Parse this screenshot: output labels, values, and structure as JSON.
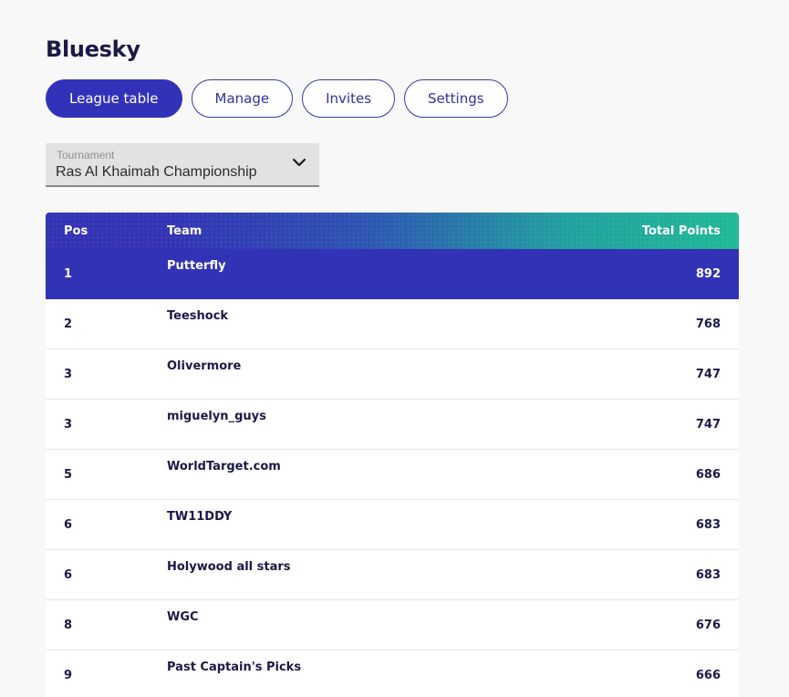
{
  "league": {
    "title": "Bluesky"
  },
  "tabs": [
    {
      "label": "League table",
      "active": true
    },
    {
      "label": "Manage",
      "active": false
    },
    {
      "label": "Invites",
      "active": false
    },
    {
      "label": "Settings",
      "active": false
    }
  ],
  "tournament": {
    "label": "Tournament",
    "value": "Ras Al Khaimah Championship",
    "icon": "chevron-down-icon"
  },
  "table": {
    "columns": {
      "pos": "Pos",
      "team": "Team",
      "points": "Total Points"
    },
    "header_gradient": [
      "#3333b4",
      "#1fb994"
    ],
    "highlight_color": "#3232b6",
    "rows": [
      {
        "pos": "1",
        "team": "Putterfly",
        "points": "892",
        "highlight": true
      },
      {
        "pos": "2",
        "team": "Teeshock",
        "points": "768",
        "highlight": false
      },
      {
        "pos": "3",
        "team": "Olivermore",
        "points": "747",
        "highlight": false
      },
      {
        "pos": "3",
        "team": "miguelyn_guys",
        "points": "747",
        "highlight": false
      },
      {
        "pos": "5",
        "team": "WorldTarget.com",
        "points": "686",
        "highlight": false
      },
      {
        "pos": "6",
        "team": "TW11DDY",
        "points": "683",
        "highlight": false
      },
      {
        "pos": "6",
        "team": "Holywood all stars",
        "points": "683",
        "highlight": false
      },
      {
        "pos": "8",
        "team": "WGC",
        "points": "676",
        "highlight": false
      },
      {
        "pos": "9",
        "team": "Past Captain's Picks",
        "points": "666",
        "highlight": false
      }
    ]
  }
}
